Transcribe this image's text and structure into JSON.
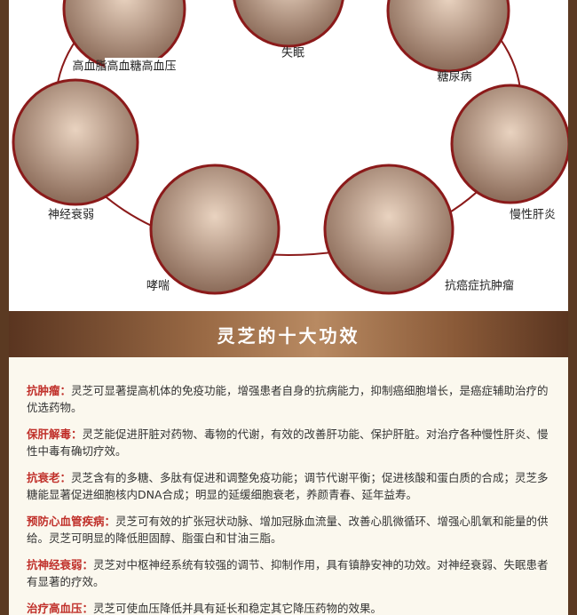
{
  "ailments": [
    "高血脂高血糖高血压",
    "失眠",
    "糖尿病",
    "神经衰弱",
    "慢性肝炎",
    "哮喘",
    "抗癌症抗肿瘤"
  ],
  "banner": {
    "title": "灵芝的十大功效"
  },
  "effects": [
    {
      "term": "抗肿瘤：",
      "text": "灵芝可显著提高机体的免疫功能，增强患者自身的抗病能力，抑制癌细胞增长，是癌症辅助治疗的优选药物。"
    },
    {
      "term": "保肝解毒：",
      "text": "灵芝能促进肝脏对药物、毒物的代谢，有效的改善肝功能、保护肝脏。对治疗各种慢性肝炎、慢性中毒有确切疗效。"
    },
    {
      "term": "抗衰老：",
      "text": "灵芝含有的多糖、多肽有促进和调整免疫功能；调节代谢平衡；促进核酸和蛋白质的合成；灵芝多糖能显著促进细胞核内DNA合成；明显的延缓细胞衰老，养颜青春、延年益寿。"
    },
    {
      "term": "预防心血管疾病：",
      "text": "灵芝可有效的扩张冠状动脉、增加冠脉血流量、改善心肌微循环、增强心肌氧和能量的供给。灵芝可明显的降低胆固醇、脂蛋白和甘油三脂。"
    },
    {
      "term": "抗神经衰弱：",
      "text": "灵芝对中枢神经系统有较强的调节、抑制作用，具有镇静安神的功效。对神经衰弱、失眠患者有显著的疗效。"
    },
    {
      "term": "治疗高血压：",
      "text": "灵芝可使血压降低并具有延长和稳定其它降压药物的效果。"
    }
  ]
}
